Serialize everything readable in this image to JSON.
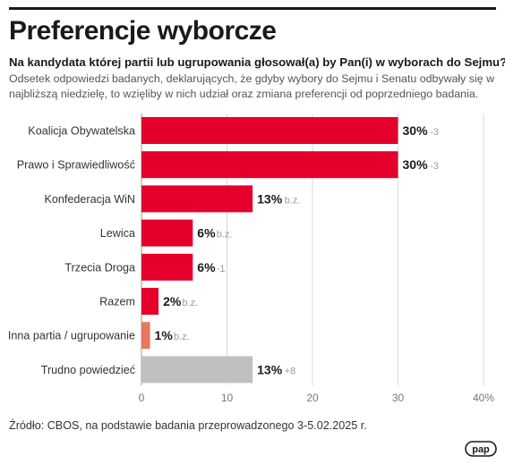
{
  "header": {
    "title": "Preferencje wyborcze",
    "question": "Na kandydata której partii lub ugrupowania głosował(a) by Pan(i) w wyborach do Sejmu?",
    "description": "Odsetek odpowiedzi badanych, deklarujących, że gdyby wybory do Sejmu i Senatu odbywały się w najbliższą niedzielę, to wzięliby w nich udział oraz zmiana preferencji od poprzedniego badania."
  },
  "footer": {
    "source": "Źródło: CBOS, na podstawie badania przeprowadzonego 3-5.02.2025 r.",
    "logo_text": "pap"
  },
  "chart_data": {
    "type": "bar",
    "orientation": "horizontal",
    "categories": [
      "Koalicja Obywatelska",
      "Prawo i Sprawiedliwość",
      "Konfederacja WiN",
      "Lewica",
      "Trzecia Droga",
      "Razem",
      "Inna partia / ugrupowanie",
      "Trudno powiedzieć"
    ],
    "values": [
      30,
      30,
      13,
      6,
      6,
      2,
      1,
      13
    ],
    "value_labels": [
      "30%",
      "30%",
      "13%",
      "6%",
      "6%",
      "2%",
      "1%",
      "13%"
    ],
    "changes": [
      "-3",
      "-3",
      "b.z.",
      "b.z.",
      "-1",
      "b.z.",
      "b.z.",
      "+8"
    ],
    "bar_colors": [
      "#e4002b",
      "#e4002b",
      "#e4002b",
      "#e4002b",
      "#e4002b",
      "#e4002b",
      "#e8775f",
      "#c0c0c0"
    ],
    "xlim": [
      0,
      40
    ],
    "x_ticks": [
      "0",
      "10",
      "20",
      "30",
      "40%"
    ],
    "grid": true
  }
}
